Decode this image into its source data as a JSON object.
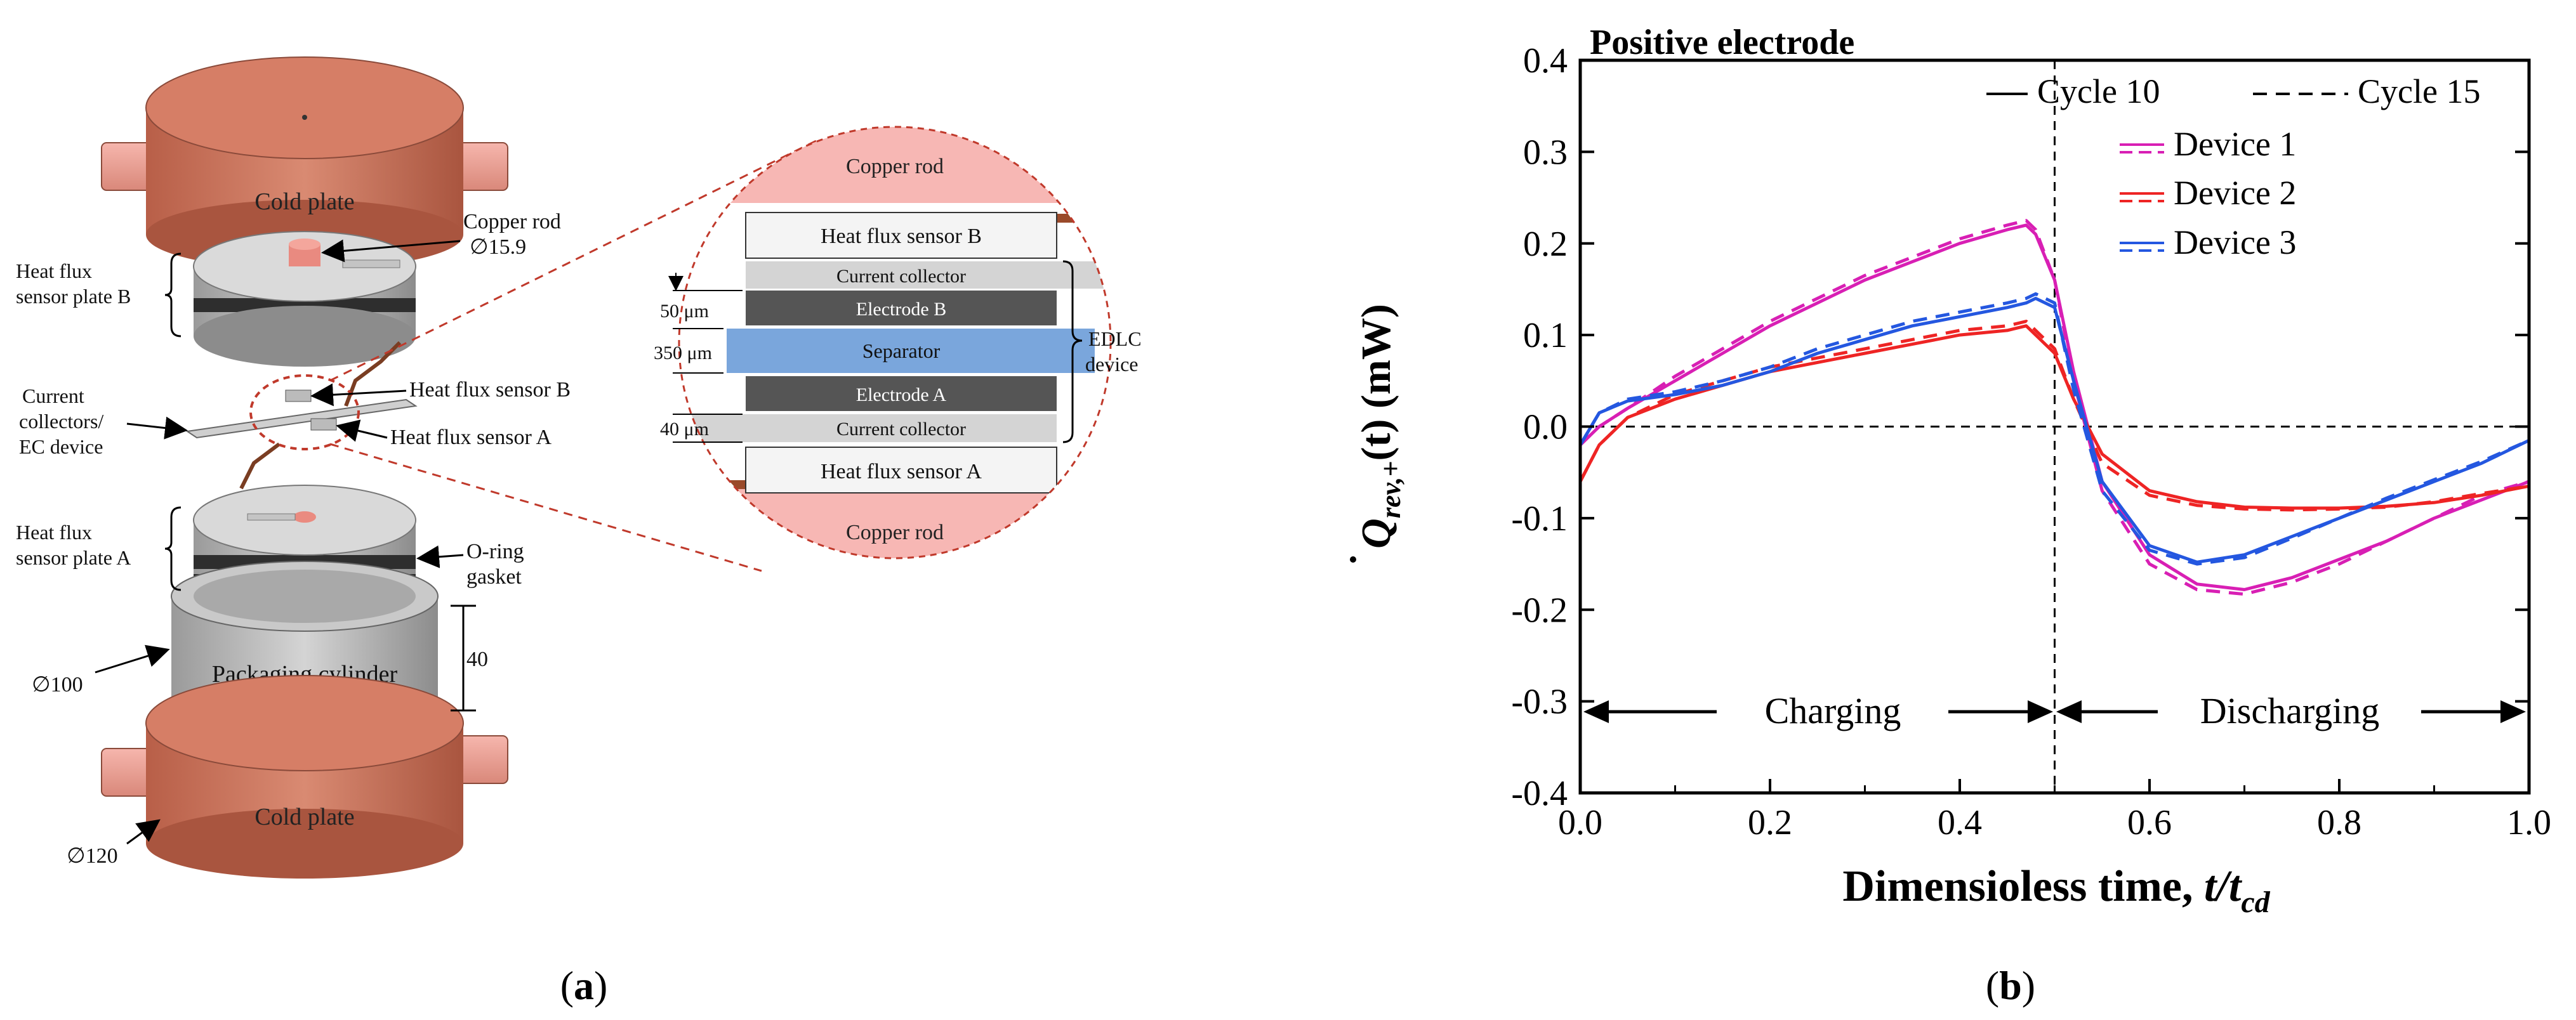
{
  "panel_a": {
    "caption_open": "(",
    "caption_letter": "a",
    "caption_close": ")",
    "labels": {
      "cold_plate_top": "Cold plate",
      "cold_plate_bottom": "Cold plate",
      "copper_rod": "Copper rod",
      "copper_rod_dim": "∅15.9",
      "hfs_plate_b_1": "Heat flux",
      "hfs_plate_b_2": "sensor plate B",
      "hfs_b": "Heat flux sensor B",
      "hfs_a": "Heat flux sensor A",
      "current_collectors_1": "Current",
      "current_collectors_2": "collectors/",
      "current_collectors_3": "EC device",
      "hfs_plate_a_1": "Heat flux",
      "hfs_plate_a_2": "sensor plate A",
      "oring_1": "O-ring",
      "oring_2": "gasket",
      "dim_100": "∅100",
      "dim_40": "40",
      "dim_120": "∅120",
      "packaging_cylinder": "Packaging cylinder"
    },
    "inset": {
      "copper_rod_top": "Copper rod",
      "copper_rod_bottom": "Copper rod",
      "hfs_b": "Heat flux sensor B",
      "current_collector_top": "Current collector",
      "electrode_b": "Electrode B",
      "separator": "Separator",
      "electrode_a": "Electrode A",
      "current_collector_bottom": "Current collector",
      "hfs_a": "Heat flux sensor A",
      "dim_50": "50 μm",
      "dim_350": "350 μm",
      "dim_40": "40 μm",
      "edlc_1": "EDLC",
      "edlc_2": "device"
    },
    "colors": {
      "copper": "#c8715a",
      "copper_light": "#f1a49b",
      "separator": "#7aa6dc",
      "electrode": "#555555",
      "collector": "#d6d6d6",
      "pink_bg": "#f7b7b4"
    }
  },
  "panel_b": {
    "caption_open": "(",
    "caption_letter": "b",
    "caption_close": ")",
    "y_symbol": "Q",
    "y_subscript": "rev,+",
    "y_rest": "(t) (mW)",
    "x_label_main": "Dimensioless time, ",
    "x_label_t": "t/t",
    "x_label_sub": "cd",
    "charging": "Charging",
    "discharging": "Discharging"
  },
  "chart_data": {
    "type": "line",
    "title": "Positive electrode",
    "xlabel": "Dimensioless time, t/t_cd",
    "ylabel": "Q_rev,+(t) (mW)",
    "xlim": [
      0.0,
      1.0
    ],
    "ylim": [
      -0.4,
      0.4
    ],
    "x_ticks": [
      "0.0",
      "0.2",
      "0.4",
      "0.6",
      "0.8",
      "1.0"
    ],
    "y_ticks": [
      "-0.4",
      "-0.3",
      "-0.2",
      "-0.1",
      "0.0",
      "0.1",
      "0.2",
      "0.3",
      "0.4"
    ],
    "legend_styles": [
      {
        "label": "Cycle 10",
        "dash": "solid"
      },
      {
        "label": "Cycle 15",
        "dash": "dashed"
      }
    ],
    "series": [
      {
        "name": "Device 1",
        "color": "#d81fb4",
        "x": [
          0.0,
          0.02,
          0.05,
          0.1,
          0.15,
          0.2,
          0.25,
          0.3,
          0.35,
          0.4,
          0.45,
          0.47,
          0.48,
          0.5,
          0.52,
          0.55,
          0.6,
          0.65,
          0.7,
          0.75,
          0.8,
          0.85,
          0.9,
          0.95,
          1.0
        ],
        "cycle10": [
          -0.02,
          0.0,
          0.02,
          0.05,
          0.08,
          0.11,
          0.135,
          0.16,
          0.18,
          0.2,
          0.215,
          0.22,
          0.21,
          0.16,
          0.06,
          -0.06,
          -0.14,
          -0.172,
          -0.178,
          -0.165,
          -0.145,
          -0.125,
          -0.1,
          -0.08,
          -0.06
        ],
        "cycle15": [
          -0.02,
          0.0,
          0.02,
          0.055,
          0.085,
          0.115,
          0.14,
          0.165,
          0.185,
          0.205,
          0.22,
          0.225,
          0.215,
          0.16,
          0.05,
          -0.07,
          -0.15,
          -0.178,
          -0.183,
          -0.17,
          -0.15,
          -0.125,
          -0.1,
          -0.075,
          -0.06
        ]
      },
      {
        "name": "Device 2",
        "color": "#ee2424",
        "x": [
          0.0,
          0.02,
          0.05,
          0.1,
          0.15,
          0.2,
          0.25,
          0.3,
          0.35,
          0.4,
          0.45,
          0.47,
          0.48,
          0.5,
          0.52,
          0.55,
          0.6,
          0.65,
          0.7,
          0.75,
          0.8,
          0.85,
          0.9,
          0.95,
          1.0
        ],
        "cycle10": [
          -0.06,
          -0.02,
          0.01,
          0.03,
          0.045,
          0.06,
          0.07,
          0.08,
          0.09,
          0.1,
          0.105,
          0.11,
          0.1,
          0.08,
          0.03,
          -0.03,
          -0.07,
          -0.082,
          -0.088,
          -0.089,
          -0.089,
          -0.087,
          -0.083,
          -0.075,
          -0.065
        ],
        "cycle15": [
          -0.06,
          -0.02,
          0.01,
          0.035,
          0.05,
          0.065,
          0.075,
          0.085,
          0.095,
          0.105,
          0.11,
          0.115,
          0.105,
          0.085,
          0.03,
          -0.04,
          -0.075,
          -0.086,
          -0.09,
          -0.091,
          -0.09,
          -0.088,
          -0.082,
          -0.073,
          -0.065
        ]
      },
      {
        "name": "Device 3",
        "color": "#2457e0",
        "x": [
          0.0,
          0.02,
          0.05,
          0.1,
          0.15,
          0.2,
          0.25,
          0.3,
          0.35,
          0.4,
          0.45,
          0.47,
          0.48,
          0.5,
          0.52,
          0.55,
          0.6,
          0.65,
          0.7,
          0.75,
          0.8,
          0.85,
          0.9,
          0.95,
          1.0
        ],
        "cycle10": [
          -0.02,
          0.015,
          0.028,
          0.035,
          0.045,
          0.06,
          0.08,
          0.095,
          0.11,
          0.12,
          0.13,
          0.135,
          0.14,
          0.13,
          0.05,
          -0.06,
          -0.13,
          -0.148,
          -0.14,
          -0.12,
          -0.1,
          -0.08,
          -0.06,
          -0.04,
          -0.015
        ],
        "cycle15": [
          -0.02,
          0.015,
          0.03,
          0.038,
          0.05,
          0.065,
          0.085,
          0.1,
          0.115,
          0.125,
          0.135,
          0.14,
          0.145,
          0.135,
          0.04,
          -0.07,
          -0.135,
          -0.15,
          -0.143,
          -0.122,
          -0.1,
          -0.078,
          -0.058,
          -0.038,
          -0.015
        ]
      }
    ],
    "reference_lines": {
      "horizontal_y": 0.0,
      "vertical_x": 0.5
    },
    "annotations": [
      {
        "text": "Charging",
        "x_from": 0.0,
        "x_to": 0.5,
        "y": -0.32
      },
      {
        "text": "Discharging",
        "x_from": 0.5,
        "x_to": 1.0,
        "y": -0.32
      }
    ]
  }
}
